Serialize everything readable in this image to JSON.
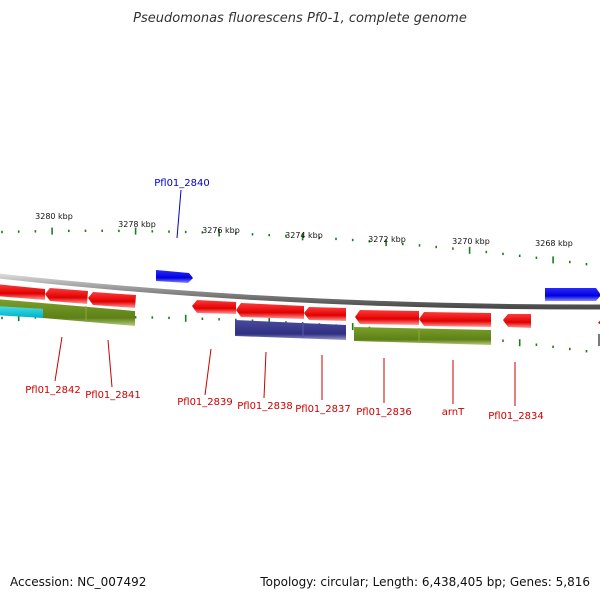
{
  "title": "Pseudomonas fluorescens Pf0-1, complete genome",
  "footer": {
    "accession": "Accession: NC_007492",
    "summary": "Topology: circular; Length: 6,438,405 bp; Genes: 5,816"
  },
  "scale_labels": [
    "3280 kbp",
    "3278 kbp",
    "3276 kbp",
    "3274 kbp",
    "3272 kbp",
    "3270 kbp",
    "3268 kbp"
  ],
  "colors": {
    "forward_cds": "#0000ee",
    "reverse_cds": "#ee0000",
    "cog_olive": "#6b8e23",
    "cog_slate": "#3a3a8c",
    "cog_cyan": "#00c8d8",
    "backbone": "#8c8c8c",
    "ticks": "#1e7a1e",
    "label_forward": "#0000cc",
    "label_reverse": "#cc0000"
  },
  "gene_labels": [
    {
      "text": "Pfl01_2840",
      "strand": "forward"
    },
    {
      "text": "Pfl01_2842",
      "strand": "reverse"
    },
    {
      "text": "Pfl01_2841",
      "strand": "reverse"
    },
    {
      "text": "Pfl01_2839",
      "strand": "reverse"
    },
    {
      "text": "Pfl01_2838",
      "strand": "reverse"
    },
    {
      "text": "Pfl01_2837",
      "strand": "reverse"
    },
    {
      "text": "Pfl01_2836",
      "strand": "reverse"
    },
    {
      "text": "arnT",
      "strand": "reverse"
    },
    {
      "text": "Pfl01_2834",
      "strand": "reverse"
    }
  ]
}
